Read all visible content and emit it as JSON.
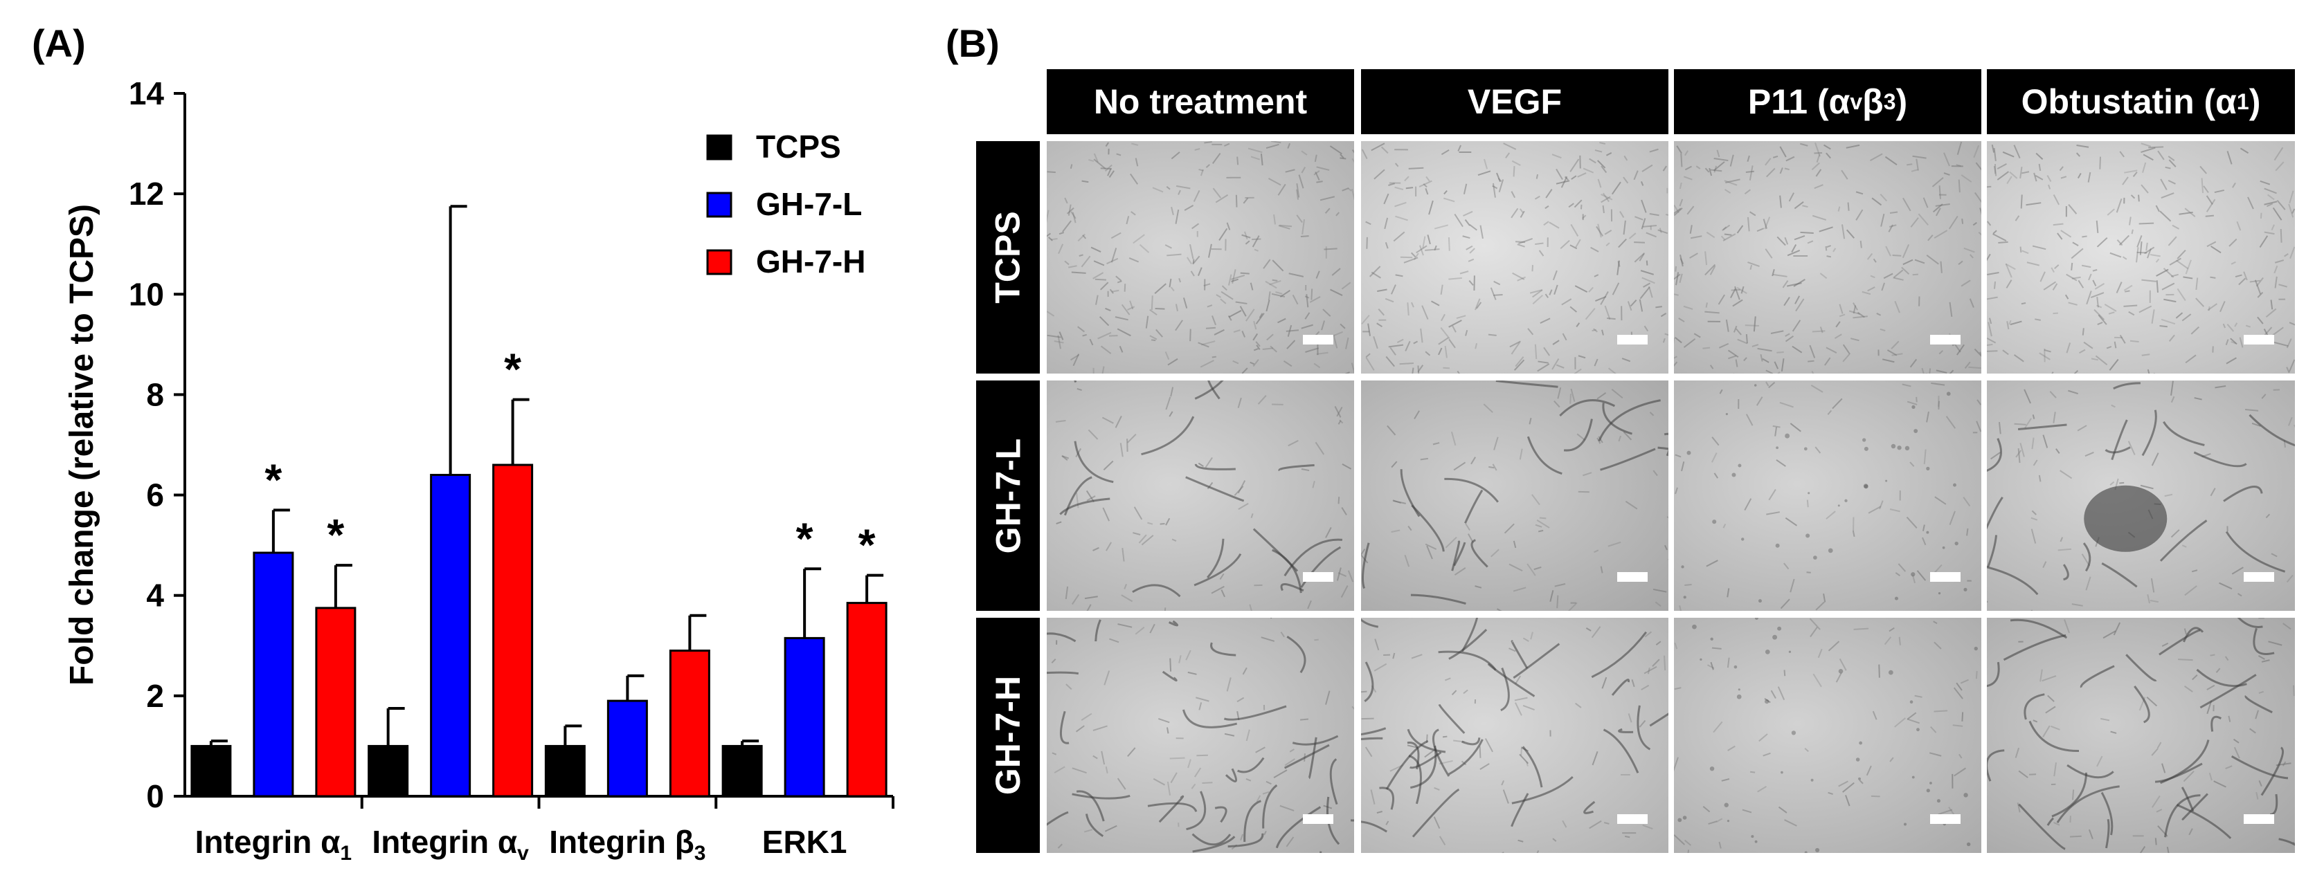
{
  "panel_a_label": "(A)",
  "panel_b_label": "(B)",
  "chart_data": {
    "type": "bar",
    "ylabel": "Fold change (relative to TCPS)",
    "xlabel": "",
    "ylim": [
      0,
      14
    ],
    "yticks": [
      "0",
      "2",
      "4",
      "6",
      "8",
      "10",
      "12",
      "14"
    ],
    "categories": [
      "Integrin α1",
      "Integrin αv",
      "Integrin β3",
      "ERK1"
    ],
    "category_parts": [
      {
        "base": "Integrin α",
        "sub": "1"
      },
      {
        "base": "Integrin α",
        "sub": "v"
      },
      {
        "base": "Integrin β",
        "sub": "3"
      },
      {
        "base": "ERK1",
        "sub": ""
      }
    ],
    "series": [
      {
        "name": "TCPS",
        "color": "#000000",
        "values": [
          1.0,
          1.0,
          1.0,
          1.0
        ],
        "errors": [
          0.1,
          0.75,
          0.4,
          0.1
        ],
        "significant": [
          false,
          false,
          false,
          false
        ]
      },
      {
        "name": "GH-7-L",
        "color": "#0000ff",
        "values": [
          4.85,
          6.4,
          1.9,
          3.15
        ],
        "errors": [
          0.85,
          5.35,
          0.5,
          1.38
        ],
        "significant": [
          true,
          false,
          false,
          true
        ]
      },
      {
        "name": "GH-7-H",
        "color": "#ff0000",
        "values": [
          3.75,
          6.6,
          2.9,
          3.85
        ],
        "errors": [
          0.85,
          1.3,
          0.7,
          0.55
        ],
        "significant": [
          true,
          true,
          false,
          true
        ]
      }
    ],
    "significance_marker": "*",
    "grid": false,
    "legend_position": "top-right"
  },
  "micrographs": {
    "columns": [
      {
        "label": "No treatment"
      },
      {
        "label": "VEGF"
      },
      {
        "label": "P11 (αvβ3)",
        "parts": [
          {
            "t": "P11 (α"
          },
          {
            "t": "v",
            "sub": true
          },
          {
            "t": "β"
          },
          {
            "t": "3",
            "sub": true
          },
          {
            "t": ")"
          }
        ]
      },
      {
        "label": "Obtustatin (α1)",
        "parts": [
          {
            "t": "Obtustatin (α"
          },
          {
            "t": "1",
            "sub": true
          },
          {
            "t": ")"
          }
        ]
      }
    ],
    "rows": [
      "TCPS",
      "GH-7-L",
      "GH-7-H"
    ],
    "colors": {
      "background": "#c4c4c4",
      "texture": "#6e6e6e",
      "network": "#3c3c3c",
      "scale_bar": "#ffffff"
    }
  }
}
